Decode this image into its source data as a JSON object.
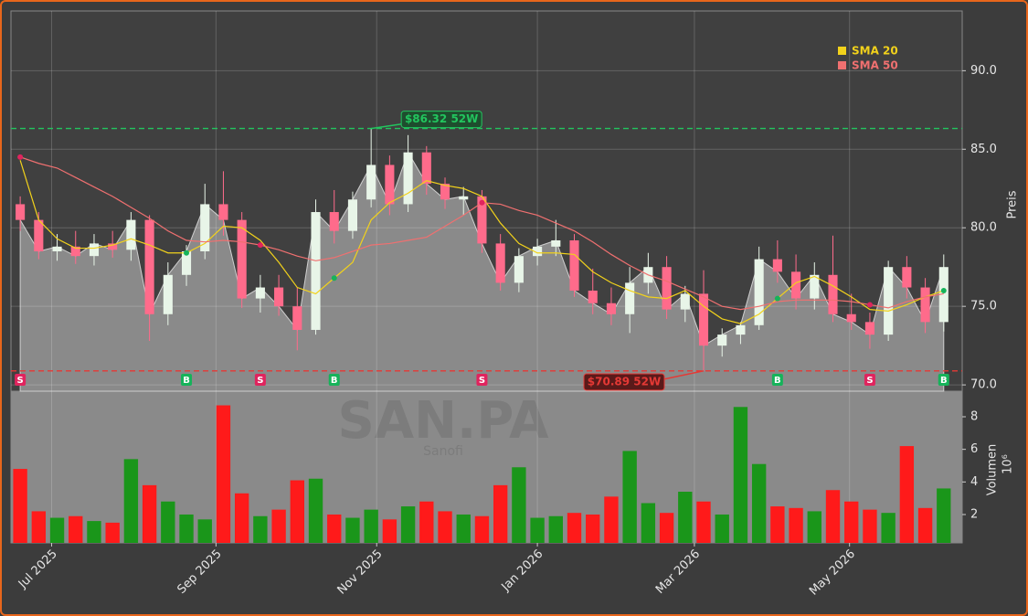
{
  "chart_data": {
    "type": "candlestick",
    "symbol": "SAN.PA",
    "company": "Sanofi",
    "ylabel": "Preis",
    "y2label": "Volumen",
    "volume_offset": "10⁶",
    "xlim": [
      -0.5,
      51
    ],
    "xticks": [
      {
        "value": 1.7,
        "label": "Jul 2025"
      },
      {
        "value": 10.6,
        "label": "Sep 2025"
      },
      {
        "value": 19.3,
        "label": "Nov 2025"
      },
      {
        "value": 28.0,
        "label": "Jan 2026"
      },
      {
        "value": 36.5,
        "label": "Mar 2026"
      },
      {
        "value": 44.9,
        "label": "May 2026"
      }
    ],
    "ylim": [
      69.6,
      93.8
    ],
    "yticks": [
      {
        "value": 70,
        "label": "70.0"
      },
      {
        "value": 75,
        "label": "75.0"
      },
      {
        "value": 80,
        "label": "80.0"
      },
      {
        "value": 85,
        "label": "85.0"
      },
      {
        "value": 90,
        "label": "90.0"
      }
    ],
    "y2lim": [
      0.26,
      9.57
    ],
    "y2ticks": [
      2,
      4,
      6,
      8
    ],
    "grid": true,
    "up_color": "#e8f5e8",
    "down_color": "#ff6b8b",
    "vol_up_color": "#1a961a",
    "vol_down_color": "#ff1a1a",
    "area_color": "#8a8a8a",
    "open": [
      81.5,
      80.5,
      78.5,
      78.8,
      78.2,
      79.0,
      78.6,
      80.5,
      74.5,
      77.0,
      78.5,
      81.5,
      80.5,
      75.5,
      76.2,
      75.0,
      73.5,
      81.0,
      79.8,
      81.8,
      84.0,
      81.5,
      84.8,
      82.8,
      81.8,
      82.0,
      79.0,
      76.5,
      78.2,
      78.8,
      79.2,
      76.0,
      75.2,
      74.5,
      76.5,
      77.5,
      74.8,
      75.8,
      72.5,
      73.2,
      73.8,
      78.0,
      77.2,
      75.5,
      77.0,
      74.5,
      74.0,
      73.2,
      77.5,
      76.2,
      74.0
    ],
    "high": [
      82.0,
      81.0,
      79.6,
      79.8,
      79.6,
      79.8,
      81.0,
      80.8,
      77.8,
      78.9,
      82.8,
      83.6,
      81.0,
      77.0,
      77.0,
      76.2,
      81.8,
      82.4,
      82.3,
      86.32,
      84.6,
      85.9,
      85.2,
      83.2,
      82.6,
      82.4,
      79.6,
      78.7,
      79.3,
      80.5,
      79.6,
      77.4,
      76.2,
      77.5,
      78.4,
      78.2,
      76.3,
      77.3,
      73.6,
      74.0,
      78.8,
      79.2,
      78.3,
      77.8,
      79.5,
      75.8,
      74.6,
      77.9,
      78.2,
      76.8,
      78.3
    ],
    "low": [
      79.8,
      78.0,
      77.9,
      77.7,
      77.6,
      78.1,
      77.9,
      72.8,
      73.8,
      76.3,
      78.0,
      79.5,
      74.9,
      74.6,
      74.4,
      72.2,
      73.2,
      79.0,
      79.3,
      81.3,
      80.8,
      81.0,
      82.1,
      81.2,
      80.8,
      78.4,
      76.0,
      75.9,
      77.6,
      78.2,
      75.6,
      74.5,
      73.8,
      73.3,
      75.8,
      74.2,
      74.0,
      70.89,
      71.8,
      72.6,
      73.5,
      76.5,
      74.8,
      74.8,
      74.0,
      73.5,
      72.3,
      72.8,
      75.5,
      73.3,
      73.4
    ],
    "close": [
      80.5,
      78.5,
      78.8,
      78.2,
      79.0,
      78.6,
      80.5,
      74.5,
      77.0,
      78.5,
      81.5,
      80.5,
      75.5,
      76.2,
      75.0,
      73.5,
      81.0,
      79.8,
      81.8,
      84.0,
      81.5,
      84.8,
      82.8,
      81.8,
      82.0,
      79.0,
      76.5,
      78.2,
      78.8,
      79.2,
      76.0,
      75.2,
      74.5,
      76.5,
      77.5,
      74.8,
      75.8,
      72.5,
      73.2,
      73.8,
      78.0,
      77.2,
      75.5,
      77.0,
      74.5,
      74.0,
      73.2,
      77.5,
      76.2,
      74.0,
      77.5
    ],
    "volume": [
      4.8,
      2.2,
      1.8,
      1.9,
      1.6,
      1.5,
      5.4,
      3.8,
      2.8,
      2.0,
      1.7,
      8.7,
      3.3,
      1.9,
      2.3,
      4.1,
      4.2,
      2.0,
      1.8,
      2.3,
      1.7,
      2.5,
      2.8,
      2.2,
      2.0,
      1.9,
      3.8,
      4.9,
      1.8,
      1.9,
      2.1,
      2.0,
      3.1,
      5.9,
      2.7,
      2.1,
      3.4,
      2.8,
      2.0,
      8.6,
      5.1,
      2.5,
      2.4,
      2.2,
      3.5,
      2.8,
      2.3,
      2.1,
      6.2,
      2.4,
      3.6
    ],
    "series": [
      {
        "name": "SMA 20",
        "color": "#f2d21b",
        "values": [
          84.3,
          80.5,
          79.3,
          78.7,
          78.7,
          78.9,
          79.3,
          78.9,
          78.4,
          78.4,
          79.0,
          80.1,
          80.0,
          79.2,
          77.8,
          76.2,
          75.8,
          76.8,
          77.8,
          80.5,
          81.6,
          82.2,
          83.0,
          82.7,
          82.5,
          82.0,
          80.3,
          79.0,
          78.4,
          78.4,
          78.3,
          77.2,
          76.5,
          76.0,
          75.6,
          75.5,
          76.0,
          75.0,
          74.2,
          73.9,
          74.5,
          75.5,
          76.5,
          76.9,
          76.3,
          75.6,
          74.8,
          74.7,
          75.1,
          75.6,
          76.0
        ]
      },
      {
        "name": "SMA 50",
        "color": "#f07070",
        "values": [
          84.5,
          84.1,
          83.8,
          83.2,
          82.6,
          82.0,
          81.3,
          80.6,
          79.8,
          79.2,
          79.1,
          79.2,
          79.1,
          78.9,
          78.6,
          78.2,
          77.9,
          78.1,
          78.5,
          78.9,
          79.0,
          79.2,
          79.4,
          80.1,
          80.8,
          81.6,
          81.5,
          81.1,
          80.8,
          80.3,
          79.8,
          79.1,
          78.3,
          77.6,
          77.0,
          76.6,
          76.1,
          75.6,
          75.0,
          74.8,
          75.0,
          75.3,
          75.4,
          75.4,
          75.4,
          75.3,
          75.1,
          74.9,
          75.3,
          75.6,
          75.8
        ]
      }
    ],
    "signals": [
      {
        "x": 0,
        "label": "S"
      },
      {
        "x": 9,
        "label": "B"
      },
      {
        "x": 13,
        "label": "S"
      },
      {
        "x": 17,
        "label": "B"
      },
      {
        "x": 25,
        "label": "S"
      },
      {
        "x": 41,
        "label": "B"
      },
      {
        "x": 46,
        "label": "S"
      },
      {
        "x": 50,
        "label": "B"
      }
    ],
    "signal_colors": {
      "S": "#e0245e",
      "B": "#16b35a"
    },
    "annotations": [
      {
        "value": 86.32,
        "label": "$86.32 52W",
        "color": "#22c55e",
        "x": 19
      },
      {
        "value": 70.89,
        "label": "$70.89 52W",
        "color": "#e53935",
        "x": 37
      }
    ]
  }
}
